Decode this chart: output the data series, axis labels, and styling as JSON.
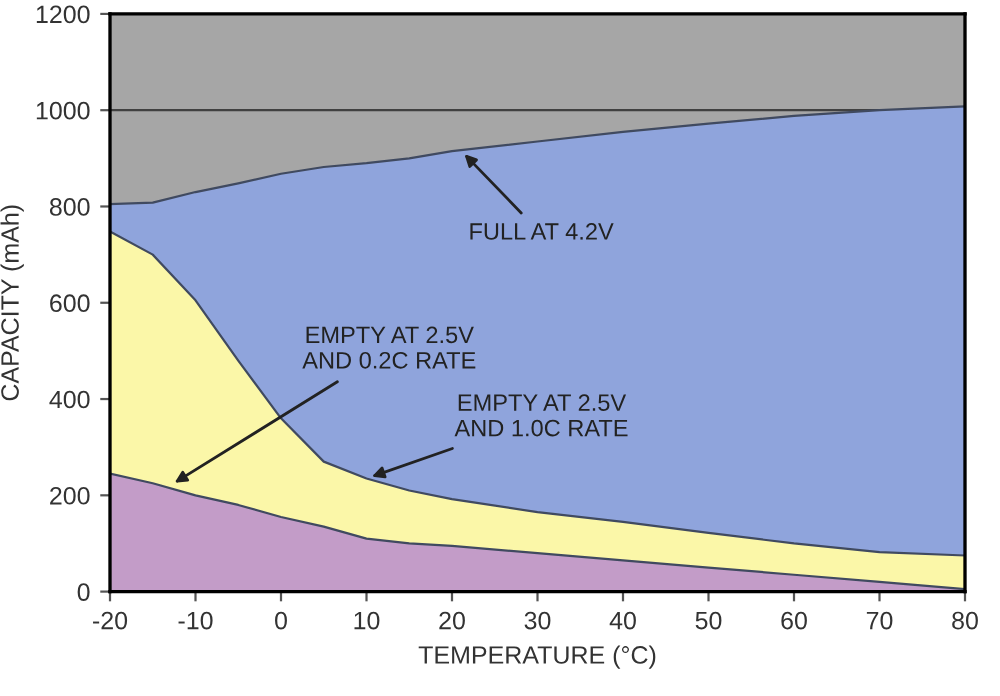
{
  "chart_data": {
    "type": "area",
    "xlabel": "TEMPERATURE (°C)",
    "ylabel": "CAPACITY (mAh)",
    "x": [
      -20,
      -15,
      -10,
      -5,
      0,
      5,
      10,
      15,
      20,
      30,
      40,
      50,
      60,
      70,
      80
    ],
    "series": [
      {
        "color": "#8fa4dc",
        "values": [
          805,
          808,
          830,
          848,
          868,
          882,
          890,
          900,
          915,
          935,
          955,
          972,
          988,
          1000,
          1008
        ]
      },
      {
        "color": "#fbf7a8",
        "values": [
          748,
          700,
          605,
          480,
          360,
          270,
          235,
          210,
          192,
          165,
          145,
          122,
          100,
          82,
          75
        ]
      },
      {
        "color": "#c39cc8",
        "values": [
          245,
          225,
          200,
          180,
          155,
          135,
          110,
          100,
          95,
          80,
          65,
          50,
          35,
          20,
          5
        ]
      }
    ],
    "xlim": [
      -20,
      80
    ],
    "ylim": [
      0,
      1200
    ],
    "xticks": [
      -20,
      -10,
      0,
      10,
      20,
      30,
      40,
      50,
      60,
      70,
      80
    ],
    "yticks": [
      0,
      200,
      400,
      600,
      800,
      1000,
      1200
    ],
    "ref_lines": [
      {
        "axis": "y",
        "value": 1000,
        "color": "#404040"
      }
    ],
    "annotations": [
      {
        "text": "FULL AT 4.2V",
        "x": 21,
        "y": 917
      },
      {
        "text": "EMPTY AT 2.5V\nAND 0.2C RATE",
        "x": -13,
        "y": 220
      },
      {
        "text": "EMPTY AT 2.5V\nAND 1.0C RATE",
        "x": 10,
        "y": 235
      }
    ]
  }
}
